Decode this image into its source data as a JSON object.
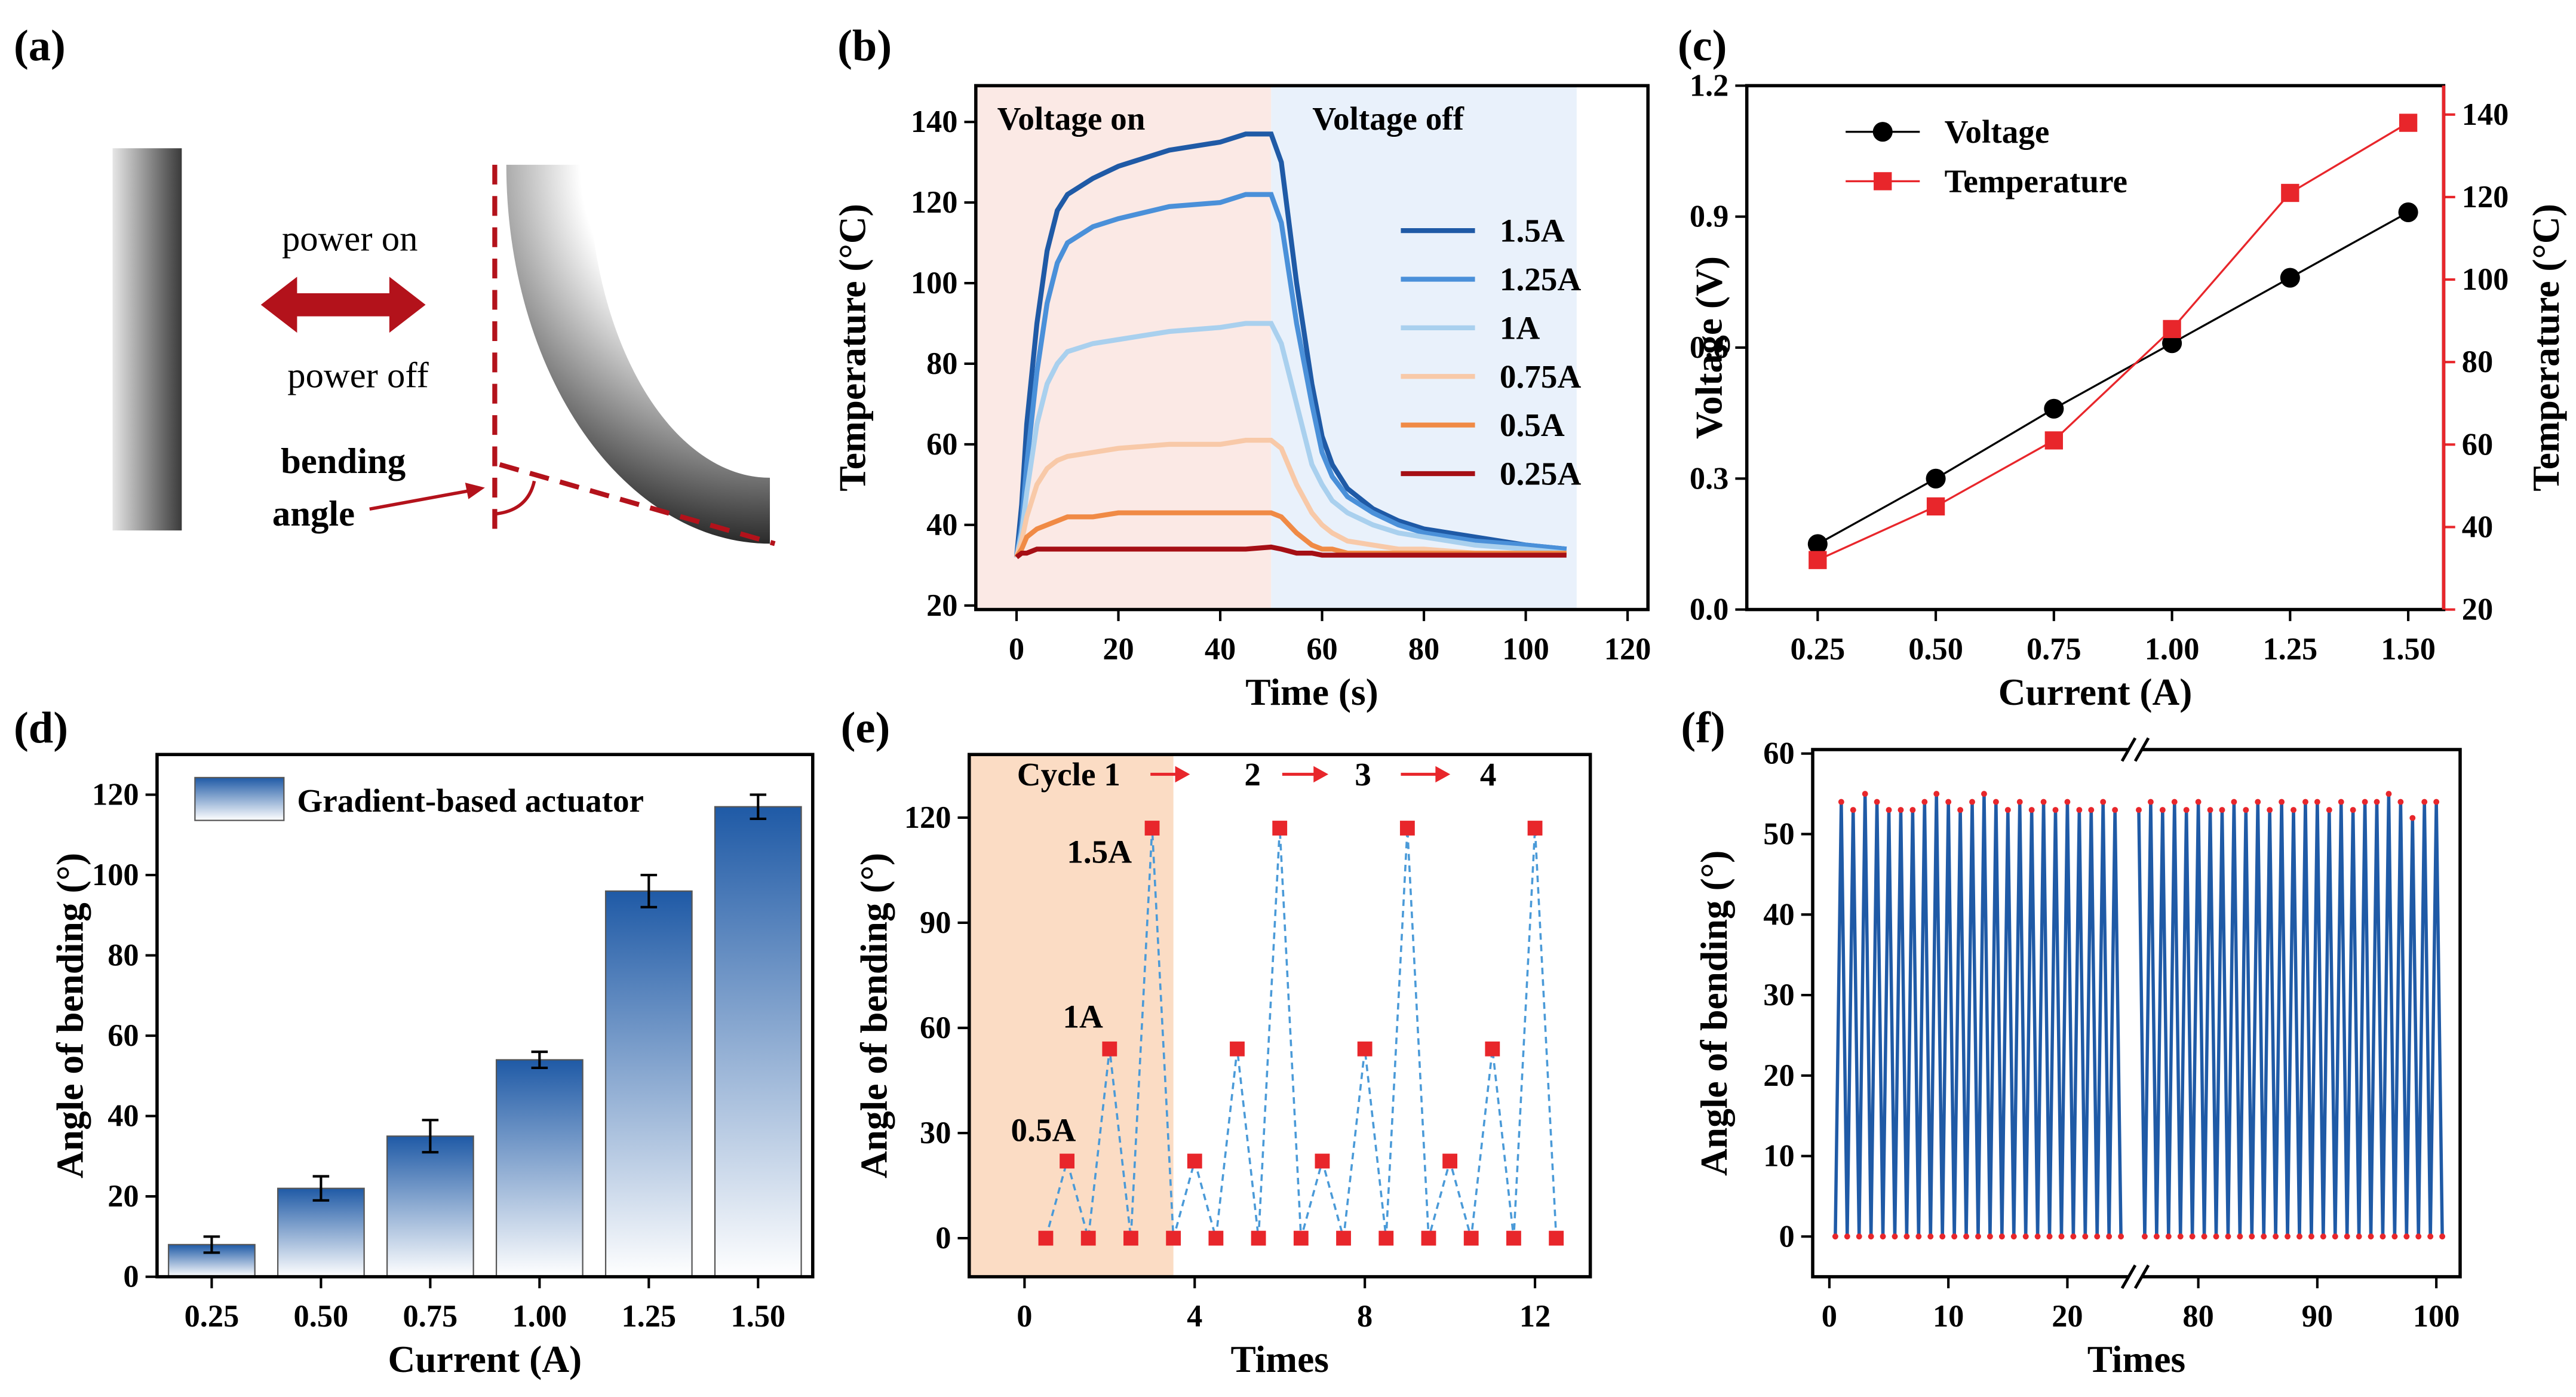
{
  "diagram": {
    "label": "(a)",
    "power_on": "power on",
    "power_off": "power off",
    "bending": "bending",
    "angle": "angle"
  },
  "chart_data": [
    {
      "panel_label": "(b)",
      "type": "line",
      "xlabel": "Time (s)",
      "ylabel": "Temperature (°C)",
      "x": [
        0,
        1,
        2,
        4,
        6,
        8,
        10,
        15,
        20,
        30,
        40,
        45,
        50,
        52,
        55,
        58,
        60,
        62,
        65,
        70,
        75,
        80,
        90,
        100,
        108
      ],
      "xlim": [
        -8,
        124
      ],
      "xticks": [
        0,
        20,
        40,
        60,
        80,
        100,
        120
      ],
      "ylim": [
        19,
        149
      ],
      "yticks": [
        20,
        40,
        60,
        80,
        100,
        120,
        140
      ],
      "regions": [
        {
          "label": "Voltage on",
          "xrange": [
            -8,
            50
          ],
          "color": "#fbe9e5"
        },
        {
          "label": "Voltage off",
          "xrange": [
            50,
            110
          ],
          "color": "#e9f1fb"
        }
      ],
      "series": [
        {
          "name": "1.5A",
          "color": "#1f5aa6",
          "values": [
            32,
            45,
            65,
            90,
            108,
            118,
            122,
            126,
            129,
            133,
            135,
            137,
            137,
            130,
            100,
            75,
            62,
            55,
            49,
            44,
            41,
            39,
            37,
            35,
            34
          ]
        },
        {
          "name": "1.25A",
          "color": "#4a90d9",
          "values": [
            32,
            40,
            55,
            78,
            95,
            105,
            110,
            114,
            116,
            119,
            120,
            122,
            122,
            115,
            90,
            70,
            58,
            52,
            47,
            43,
            40,
            38,
            36,
            35,
            34
          ]
        },
        {
          "name": "1A",
          "color": "#a9d0ee",
          "values": [
            32,
            38,
            48,
            65,
            75,
            80,
            83,
            85,
            86,
            88,
            89,
            90,
            90,
            85,
            70,
            55,
            50,
            46,
            43,
            40,
            38,
            37,
            35,
            34,
            33
          ]
        },
        {
          "name": "0.75A",
          "color": "#f8c9a8",
          "values": [
            32,
            36,
            42,
            50,
            54,
            56,
            57,
            58,
            59,
            60,
            60,
            61,
            61,
            59,
            50,
            43,
            40,
            38,
            36,
            35,
            34,
            34,
            33,
            33,
            33
          ]
        },
        {
          "name": "0.5A",
          "color": "#f08a45",
          "values": [
            32,
            34,
            37,
            39,
            40,
            41,
            42,
            42,
            43,
            43,
            43,
            43,
            43,
            42,
            38,
            35,
            34,
            34,
            33,
            33,
            33,
            33,
            33,
            33,
            33
          ]
        },
        {
          "name": "0.25A",
          "color": "#a50f15",
          "values": [
            32,
            33,
            33,
            34,
            34,
            34,
            34,
            34,
            34,
            34,
            34,
            34,
            34.5,
            34,
            33,
            33,
            32.5,
            32.5,
            32.5,
            32.5,
            32.5,
            32.5,
            32.5,
            32.5,
            32.5
          ]
        }
      ]
    },
    {
      "panel_label": "(c)",
      "type": "line",
      "xlabel": "Current (A)",
      "ylabel": "Voltage (V)",
      "y2label": "Temperature (°C)",
      "x": [
        0.25,
        0.5,
        0.75,
        1,
        1.25,
        1.5
      ],
      "xlim": [
        0.1,
        1.575
      ],
      "xticks": [
        0.25,
        {
          "value": 0.5,
          "label": "0.50"
        },
        0.75,
        {
          "value": 1,
          "label": "1.00"
        },
        1.25,
        {
          "value": 1.5,
          "label": "1.50"
        }
      ],
      "ylim": [
        0,
        1.2
      ],
      "yticks": [
        {
          "value": 0,
          "label": "0.0"
        },
        0.3,
        0.6,
        0.9,
        1.2
      ],
      "y2lim": [
        20,
        147
      ],
      "y2ticks": [
        20,
        40,
        60,
        80,
        100,
        120,
        140
      ],
      "y2color": "#e8262b",
      "legend": "upper left",
      "series": [
        {
          "name": "Voltage",
          "color": "#000000",
          "marker": "circle",
          "values": [
            0.15,
            0.3,
            0.46,
            0.61,
            0.76,
            0.91
          ]
        },
        {
          "name": "Temperature",
          "color": "#e8262b",
          "marker": "square",
          "axis": "y2",
          "values": [
            32,
            45,
            61,
            88,
            121,
            138
          ]
        }
      ]
    },
    {
      "panel_label": "(d)",
      "type": "bar",
      "xlabel": "Current (A)",
      "ylabel": "Angle of bending (°)",
      "categories": [
        "0.25",
        "0.50",
        "0.75",
        "1.00",
        "1.25",
        "1.50"
      ],
      "ylim": [
        0,
        130
      ],
      "yticks": [
        0,
        20,
        40,
        60,
        80,
        100,
        120
      ],
      "legend": "upper left",
      "series": [
        {
          "name": "Gradient-based actuator",
          "color": "#1f5aa6",
          "values": [
            8,
            22,
            35,
            54,
            96,
            117
          ],
          "errors": [
            2,
            3,
            4,
            2,
            4,
            3
          ]
        }
      ]
    },
    {
      "panel_label": "(e)",
      "type": "scatter",
      "xlabel": "Times",
      "ylabel": "Angle of bending (°)",
      "x": [
        0.5,
        1,
        1.5,
        2,
        2.5,
        3,
        3.5,
        4,
        4.5,
        5,
        5.5,
        6,
        6.5,
        7,
        7.5,
        8,
        8.5,
        9,
        9.5,
        10,
        10.5,
        11,
        11.5,
        12,
        12.5
      ],
      "values": [
        0,
        22,
        0,
        54,
        0,
        117,
        0,
        22,
        0,
        54,
        0,
        117,
        0,
        22,
        0,
        54,
        0,
        117,
        0,
        22,
        0,
        54,
        0,
        117,
        0
      ],
      "color": "#e8262b",
      "line_color": "#4a9ad8",
      "xlim": [
        -1.3,
        13.3
      ],
      "xticks": [
        0,
        4,
        8,
        12
      ],
      "ylim": [
        -11,
        138
      ],
      "yticks": [
        0,
        30,
        60,
        90,
        120
      ],
      "region": {
        "xrange": [
          -1.3,
          3.5
        ],
        "color": "#fbdcc4"
      },
      "annotations": [
        "Cycle 1",
        "2",
        "3",
        "4",
        "1.5A",
        "1A",
        "0.5A"
      ]
    },
    {
      "panel_label": "(f)",
      "type": "broken_line",
      "xlabel": "Times",
      "ylabel": "Angle of bending (°)",
      "xlim": [
        [
          -1.4,
          25.7
        ],
        [
          74.7,
          102
        ]
      ],
      "xticks": [
        [
          0,
          10,
          20
        ],
        [
          80,
          90,
          100
        ]
      ],
      "ylim": [
        -5,
        60.5
      ],
      "yticks": [
        0,
        10,
        20,
        30,
        40,
        50,
        60
      ],
      "color": "#1f5aa6",
      "marker_color": "#e8262b",
      "series": [
        {
          "x": [
            0.5,
            1,
            1.5,
            2,
            2.5,
            3,
            3.5,
            4,
            4.5,
            5,
            5.5,
            6,
            6.5,
            7,
            7.5,
            8,
            8.5,
            9,
            9.5,
            10,
            10.5,
            11,
            11.5,
            12,
            12.5,
            13,
            13.5,
            14,
            14.5,
            15,
            15.5,
            16,
            16.5,
            17,
            17.5,
            18,
            18.5,
            19,
            19.5,
            20,
            20.5,
            21,
            21.5,
            22,
            22.5,
            23,
            23.5,
            24,
            24.5
          ],
          "values": [
            0,
            54,
            0,
            53,
            0,
            55,
            0,
            54,
            0,
            53,
            0,
            53,
            0,
            53,
            0,
            54,
            0,
            55,
            0,
            54,
            0,
            53,
            0,
            54,
            0,
            55,
            0,
            54,
            0,
            53,
            0,
            54,
            0,
            53,
            0,
            54,
            0,
            53,
            0,
            54,
            0,
            53,
            0,
            53,
            0,
            54,
            0,
            53,
            0
          ]
        },
        {
          "x": [
            75,
            75.5,
            76,
            76.5,
            77,
            77.5,
            78,
            78.5,
            79,
            79.5,
            80,
            80.5,
            81,
            81.5,
            82,
            82.5,
            83,
            83.5,
            84,
            84.5,
            85,
            85.5,
            86,
            86.5,
            87,
            87.5,
            88,
            88.5,
            89,
            89.5,
            90,
            90.5,
            91,
            91.5,
            92,
            92.5,
            93,
            93.5,
            94,
            94.5,
            95,
            95.5,
            96,
            96.5,
            97,
            97.5,
            98,
            98.5,
            99,
            99.5,
            100,
            100.5
          ],
          "values": [
            53,
            0,
            54,
            0,
            53,
            0,
            54,
            0,
            53,
            0,
            54,
            0,
            53,
            0,
            53,
            0,
            54,
            0,
            53,
            0,
            54,
            0,
            53,
            0,
            54,
            0,
            53,
            0,
            54,
            0,
            54,
            0,
            53,
            0,
            54,
            0,
            53,
            0,
            54,
            0,
            54,
            0,
            55,
            0,
            54,
            0,
            52,
            0,
            54,
            0,
            54,
            0
          ]
        }
      ]
    }
  ]
}
